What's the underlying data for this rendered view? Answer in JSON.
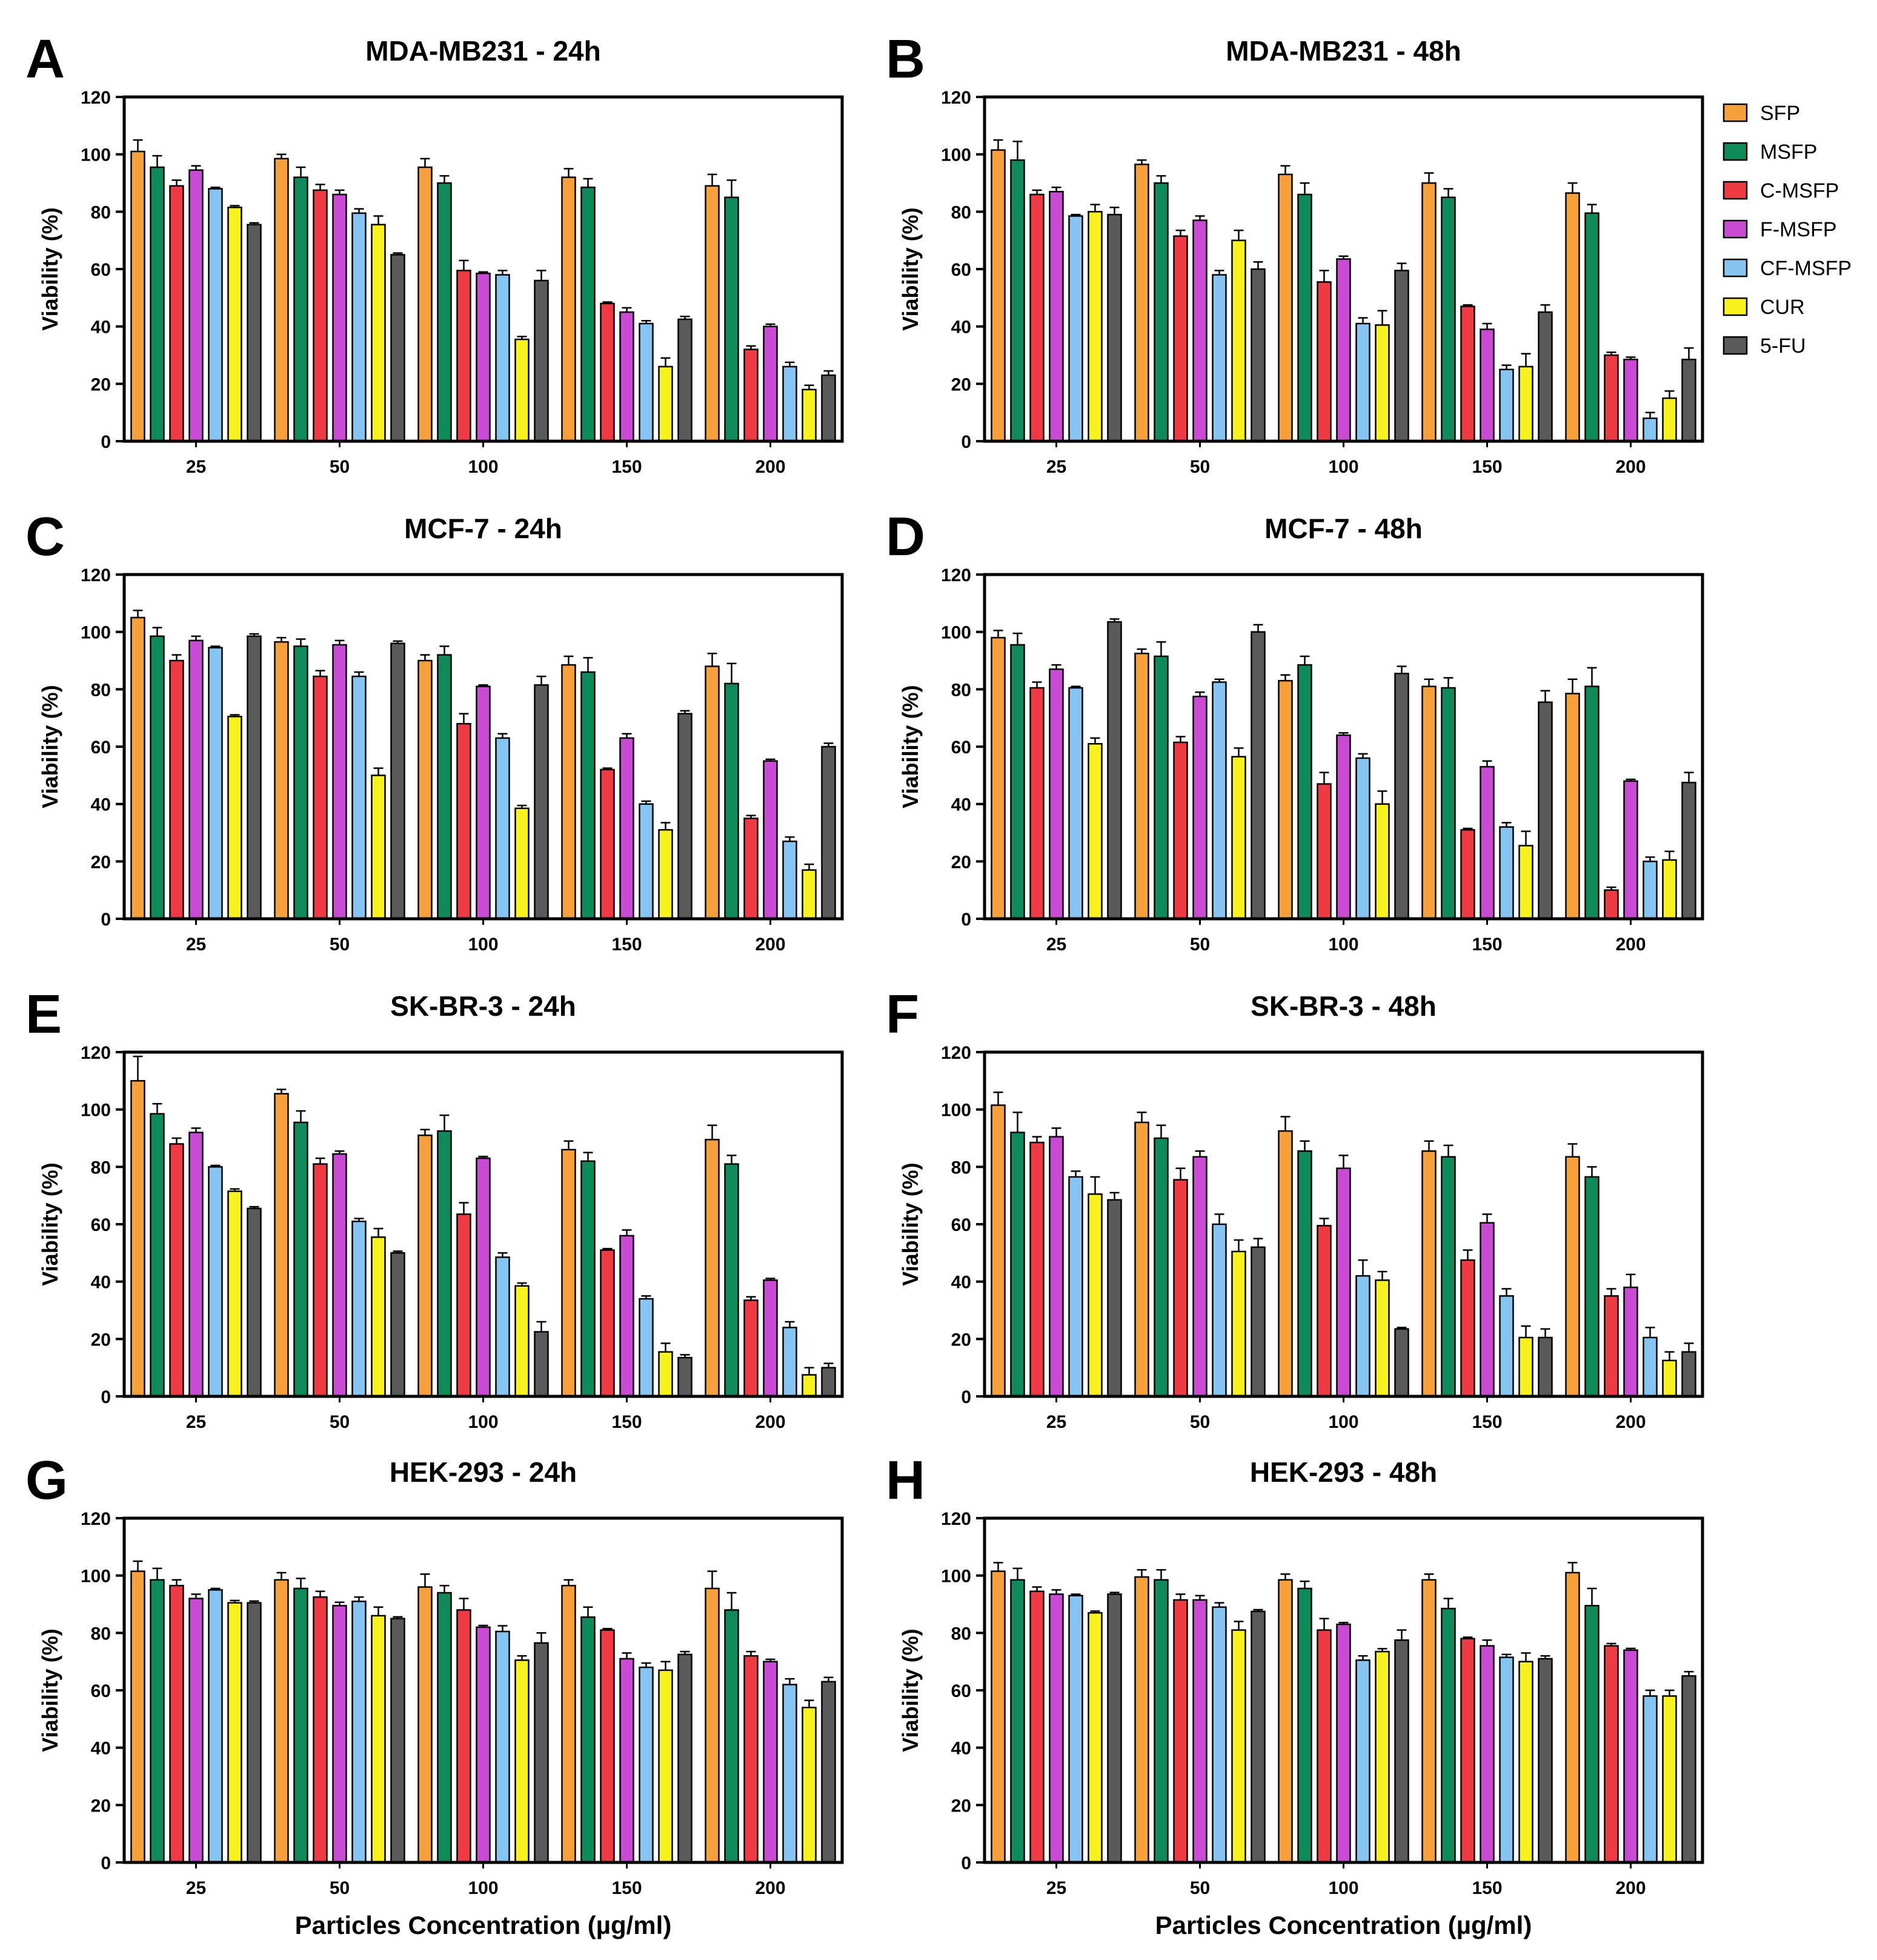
{
  "figure": {
    "x_axis_title": "Particles Concentration (µg/ml)"
  },
  "legend": [
    {
      "name": "SFP",
      "color": "#F6A03B"
    },
    {
      "name": "MSFP",
      "color": "#0E8A5B"
    },
    {
      "name": "C-MSFP",
      "color": "#F03A43"
    },
    {
      "name": "F-MSFP",
      "color": "#C94BD3"
    },
    {
      "name": "CF-MSFP",
      "color": "#86C5F2"
    },
    {
      "name": "CUR",
      "color": "#F7F11D"
    },
    {
      "name": "5-FU",
      "color": "#5A5A5A"
    }
  ],
  "chart_data": [
    {
      "type": "bar",
      "letter": "A",
      "title": "MDA-MB231 - 24h",
      "xlabel": "",
      "ylabel": "Viability (%)",
      "ylim": [
        0,
        120
      ],
      "yticks": [
        "0",
        "20",
        "40",
        "60",
        "80",
        "100",
        "120"
      ],
      "categories": [
        "25",
        "50",
        "100",
        "150",
        "200"
      ],
      "series": [
        {
          "name": "SFP",
          "values": [
            101,
            98.5,
            95.5,
            92,
            89
          ]
        },
        {
          "name": "MSFP",
          "values": [
            95.5,
            92,
            90,
            88.5,
            85
          ]
        },
        {
          "name": "C-MSFP",
          "values": [
            89,
            87.5,
            59.5,
            48,
            32
          ]
        },
        {
          "name": "F-MSFP",
          "values": [
            94.5,
            86,
            58.5,
            45,
            40
          ]
        },
        {
          "name": "CF-MSFP",
          "values": [
            88,
            79.5,
            58,
            41,
            26
          ]
        },
        {
          "name": "CUR",
          "values": [
            81.5,
            75.5,
            35.5,
            26,
            18
          ]
        },
        {
          "name": "5-FU",
          "values": [
            75.5,
            65,
            56,
            42.5,
            23
          ]
        }
      ],
      "errors": [
        [
          4,
          1.5,
          3,
          3,
          4
        ],
        [
          4,
          3.5,
          2.5,
          3,
          6
        ],
        [
          2,
          2,
          3.5,
          0.5,
          1.2
        ],
        [
          1.5,
          1.5,
          0.5,
          1.5,
          0.8
        ],
        [
          0.5,
          1.5,
          1.5,
          1,
          1.5
        ],
        [
          0.6,
          3,
          1,
          3,
          1.5
        ],
        [
          0.6,
          0.6,
          3.5,
          1,
          1.5
        ]
      ]
    },
    {
      "type": "bar",
      "letter": "B",
      "title": "MDA-MB231 - 48h",
      "xlabel": "",
      "ylabel": "Viability (%)",
      "ylim": [
        0,
        120
      ],
      "yticks": [
        "0",
        "20",
        "40",
        "60",
        "80",
        "100",
        "120"
      ],
      "categories": [
        "25",
        "50",
        "100",
        "150",
        "200"
      ],
      "series": [
        {
          "name": "SFP",
          "values": [
            101.5,
            96.5,
            93,
            90,
            86.5
          ]
        },
        {
          "name": "MSFP",
          "values": [
            98,
            90,
            86,
            85,
            79.5
          ]
        },
        {
          "name": "C-MSFP",
          "values": [
            86,
            71.5,
            55.5,
            47,
            30
          ]
        },
        {
          "name": "F-MSFP",
          "values": [
            87,
            77,
            63.5,
            39,
            28.5
          ]
        },
        {
          "name": "CF-MSFP",
          "values": [
            78.5,
            58,
            41,
            25,
            8
          ]
        },
        {
          "name": "CUR",
          "values": [
            80,
            70,
            40.5,
            26,
            15
          ]
        },
        {
          "name": "5-FU",
          "values": [
            79,
            60,
            59.5,
            45,
            28.5
          ]
        }
      ],
      "errors": [
        [
          3.5,
          1.5,
          3,
          3.5,
          3.5
        ],
        [
          6.5,
          2.5,
          4,
          3,
          3
        ],
        [
          1.5,
          2,
          4,
          0.5,
          1
        ],
        [
          1.5,
          1.5,
          1,
          2,
          0.8
        ],
        [
          0.5,
          1.5,
          2,
          1.5,
          2
        ],
        [
          2.5,
          3.5,
          5,
          4.5,
          2.5
        ],
        [
          2.5,
          2.5,
          2.5,
          2.5,
          4
        ]
      ]
    },
    {
      "type": "bar",
      "letter": "C",
      "title": "MCF-7 - 24h",
      "xlabel": "",
      "ylabel": "Viability (%)",
      "ylim": [
        0,
        120
      ],
      "yticks": [
        "0",
        "20",
        "40",
        "60",
        "80",
        "100",
        "120"
      ],
      "categories": [
        "25",
        "50",
        "100",
        "150",
        "200"
      ],
      "series": [
        {
          "name": "SFP",
          "values": [
            105,
            96.5,
            90,
            88.5,
            88
          ]
        },
        {
          "name": "MSFP",
          "values": [
            98.5,
            95,
            92,
            86,
            82
          ]
        },
        {
          "name": "C-MSFP",
          "values": [
            90,
            84.5,
            68,
            52,
            35
          ]
        },
        {
          "name": "F-MSFP",
          "values": [
            97,
            95.5,
            81,
            63,
            55
          ]
        },
        {
          "name": "CF-MSFP",
          "values": [
            94.5,
            84.5,
            63,
            40,
            27
          ]
        },
        {
          "name": "CUR",
          "values": [
            70.5,
            50,
            38.5,
            31,
            17
          ]
        },
        {
          "name": "5-FU",
          "values": [
            98.5,
            96,
            81.5,
            71.5,
            60
          ]
        }
      ],
      "errors": [
        [
          2.5,
          1.5,
          2,
          3,
          4.5
        ],
        [
          3,
          2.5,
          3,
          5,
          7
        ],
        [
          2,
          2,
          3.5,
          0.5,
          1
        ],
        [
          1.5,
          1.5,
          0.5,
          1.5,
          0.6
        ],
        [
          0.5,
          1.5,
          1.5,
          1,
          1.5
        ],
        [
          0.6,
          2.5,
          1,
          2.5,
          2
        ],
        [
          0.8,
          0.8,
          3,
          1,
          1.2
        ]
      ]
    },
    {
      "type": "bar",
      "letter": "D",
      "title": "MCF-7 - 48h",
      "xlabel": "",
      "ylabel": "Viability (%)",
      "ylim": [
        0,
        120
      ],
      "yticks": [
        "0",
        "20",
        "40",
        "60",
        "80",
        "100",
        "120"
      ],
      "categories": [
        "25",
        "50",
        "100",
        "150",
        "200"
      ],
      "series": [
        {
          "name": "SFP",
          "values": [
            98,
            92.5,
            83,
            81,
            78.5
          ]
        },
        {
          "name": "MSFP",
          "values": [
            95.5,
            91.5,
            88.5,
            80.5,
            81
          ]
        },
        {
          "name": "C-MSFP",
          "values": [
            80.5,
            61.5,
            47,
            31,
            10
          ]
        },
        {
          "name": "F-MSFP",
          "values": [
            87,
            77.5,
            64,
            53,
            48
          ]
        },
        {
          "name": "CF-MSFP",
          "values": [
            80.5,
            82.5,
            56,
            32,
            20
          ]
        },
        {
          "name": "CUR",
          "values": [
            61,
            56.5,
            40,
            25.5,
            20.5
          ]
        },
        {
          "name": "5-FU",
          "values": [
            103.5,
            100,
            85.5,
            75.5,
            47.5
          ]
        }
      ],
      "errors": [
        [
          2.5,
          1.5,
          2,
          2.5,
          5
        ],
        [
          4,
          5,
          3,
          3.5,
          6.5
        ],
        [
          2,
          2,
          4,
          0.5,
          1
        ],
        [
          1.5,
          1.5,
          0.8,
          2,
          0.6
        ],
        [
          0.5,
          1,
          1.5,
          1.5,
          1.5
        ],
        [
          2,
          3,
          4.5,
          5,
          3
        ],
        [
          1,
          2.5,
          2.5,
          4,
          3.5
        ]
      ]
    },
    {
      "type": "bar",
      "letter": "E",
      "title": "SK-BR-3 - 24h",
      "xlabel": "",
      "ylabel": "Viability (%)",
      "ylim": [
        0,
        120
      ],
      "yticks": [
        "0",
        "20",
        "40",
        "60",
        "80",
        "100",
        "120"
      ],
      "categories": [
        "25",
        "50",
        "100",
        "150",
        "200"
      ],
      "series": [
        {
          "name": "SFP",
          "values": [
            110,
            105.5,
            91,
            86,
            89.5
          ]
        },
        {
          "name": "MSFP",
          "values": [
            98.5,
            95.5,
            92.5,
            82,
            81
          ]
        },
        {
          "name": "C-MSFP",
          "values": [
            88,
            81,
            63.5,
            51,
            33.5
          ]
        },
        {
          "name": "F-MSFP",
          "values": [
            92,
            84.5,
            83,
            56,
            40.5
          ]
        },
        {
          "name": "CF-MSFP",
          "values": [
            80,
            61,
            48.5,
            34,
            24
          ]
        },
        {
          "name": "CUR",
          "values": [
            71.5,
            55.5,
            38.5,
            15.5,
            7.5
          ]
        },
        {
          "name": "5-FU",
          "values": [
            65.5,
            50,
            22.5,
            13.5,
            10
          ]
        }
      ],
      "errors": [
        [
          8.5,
          1.5,
          2,
          3,
          5
        ],
        [
          3.5,
          4,
          5.5,
          3,
          3
        ],
        [
          2,
          2,
          4,
          0.5,
          1.2
        ],
        [
          1.5,
          1,
          0.6,
          2,
          0.6
        ],
        [
          0.5,
          1,
          1.5,
          1,
          2
        ],
        [
          0.8,
          3,
          1,
          3,
          2.5
        ],
        [
          0.6,
          0.6,
          3.5,
          1,
          1.5
        ]
      ]
    },
    {
      "type": "bar",
      "letter": "F",
      "title": "SK-BR-3 - 48h",
      "xlabel": "",
      "ylabel": "Viability (%)",
      "ylim": [
        0,
        120
      ],
      "yticks": [
        "0",
        "20",
        "40",
        "60",
        "80",
        "100",
        "120"
      ],
      "categories": [
        "25",
        "50",
        "100",
        "150",
        "200"
      ],
      "series": [
        {
          "name": "SFP",
          "values": [
            101.5,
            95.5,
            92.5,
            85.5,
            83.5
          ]
        },
        {
          "name": "MSFP",
          "values": [
            92,
            90,
            85.5,
            83.5,
            76.5
          ]
        },
        {
          "name": "C-MSFP",
          "values": [
            88.5,
            75.5,
            59.5,
            47.5,
            35
          ]
        },
        {
          "name": "F-MSFP",
          "values": [
            90.5,
            83.5,
            79.5,
            60.5,
            38
          ]
        },
        {
          "name": "CF-MSFP",
          "values": [
            76.5,
            60,
            42,
            35,
            20.5
          ]
        },
        {
          "name": "CUR",
          "values": [
            70.5,
            50.5,
            40.5,
            20.5,
            12.5
          ]
        },
        {
          "name": "5-FU",
          "values": [
            68.5,
            52,
            23.5,
            20.5,
            15.5
          ]
        }
      ],
      "errors": [
        [
          4.5,
          3.5,
          5,
          3.5,
          4.5
        ],
        [
          7,
          4.5,
          3.5,
          4,
          3.5
        ],
        [
          2,
          4,
          2.5,
          3.5,
          2.5
        ],
        [
          3,
          2,
          4.5,
          3,
          4.5
        ],
        [
          2,
          3.5,
          5.5,
          2.5,
          3.5
        ],
        [
          6,
          4,
          3,
          4,
          3
        ],
        [
          2.5,
          3,
          0.5,
          3,
          3
        ]
      ]
    },
    {
      "type": "bar",
      "letter": "G",
      "title": "HEK-293 - 24h",
      "xlabel": "Particles Concentration (µg/ml)",
      "ylabel": "Viability (%)",
      "ylim": [
        0,
        120
      ],
      "yticks": [
        "0",
        "20",
        "40",
        "60",
        "80",
        "100",
        "120"
      ],
      "categories": [
        "25",
        "50",
        "100",
        "150",
        "200"
      ],
      "series": [
        {
          "name": "SFP",
          "values": [
            101.5,
            98.5,
            96,
            96.5,
            95.5
          ]
        },
        {
          "name": "MSFP",
          "values": [
            98.5,
            95.5,
            94,
            85.5,
            88
          ]
        },
        {
          "name": "C-MSFP",
          "values": [
            96.5,
            92.5,
            88,
            81,
            72
          ]
        },
        {
          "name": "F-MSFP",
          "values": [
            92,
            89.5,
            82,
            71,
            70
          ]
        },
        {
          "name": "CF-MSFP",
          "values": [
            95,
            91,
            80.5,
            68,
            62
          ]
        },
        {
          "name": "CUR",
          "values": [
            90.5,
            86,
            70.5,
            67,
            54
          ]
        },
        {
          "name": "5-FU",
          "values": [
            90.5,
            85,
            76.5,
            72.5,
            63
          ]
        }
      ],
      "errors": [
        [
          3.5,
          2.5,
          4.5,
          2,
          6
        ],
        [
          4,
          3.5,
          2.5,
          3.5,
          6
        ],
        [
          2,
          2,
          4,
          0.5,
          1.5
        ],
        [
          1.5,
          1.2,
          0.6,
          2,
          0.8
        ],
        [
          0.5,
          1.5,
          2,
          1.5,
          2
        ],
        [
          0.8,
          3,
          1.5,
          3,
          2.5
        ],
        [
          0.6,
          0.6,
          3.5,
          1,
          1.5
        ]
      ]
    },
    {
      "type": "bar",
      "letter": "H",
      "title": "HEK-293 - 48h",
      "xlabel": "Particles Concentration (µg/ml)",
      "ylabel": "Viability (%)",
      "ylim": [
        0,
        120
      ],
      "yticks": [
        "0",
        "20",
        "40",
        "60",
        "80",
        "100",
        "120"
      ],
      "categories": [
        "25",
        "50",
        "100",
        "150",
        "200"
      ],
      "series": [
        {
          "name": "SFP",
          "values": [
            101.5,
            99.5,
            98.5,
            98.5,
            101
          ]
        },
        {
          "name": "MSFP",
          "values": [
            98.5,
            98.5,
            95.5,
            88.5,
            89.5
          ]
        },
        {
          "name": "C-MSFP",
          "values": [
            94.5,
            91.5,
            81,
            78,
            75.5
          ]
        },
        {
          "name": "F-MSFP",
          "values": [
            93.5,
            91.5,
            83,
            75.5,
            74
          ]
        },
        {
          "name": "CF-MSFP",
          "values": [
            93,
            89,
            70.5,
            71.5,
            58
          ]
        },
        {
          "name": "CUR",
          "values": [
            87,
            81,
            73.5,
            70,
            58
          ]
        },
        {
          "name": "5-FU",
          "values": [
            93.5,
            87.5,
            77.5,
            71,
            65
          ]
        }
      ],
      "errors": [
        [
          3,
          2.5,
          2,
          2,
          3.5
        ],
        [
          4,
          3.5,
          2.5,
          3.5,
          6
        ],
        [
          1.5,
          2,
          4,
          0.5,
          0.8
        ],
        [
          1.5,
          1.5,
          0.6,
          2,
          0.6
        ],
        [
          0.5,
          1.5,
          1.5,
          1,
          2
        ],
        [
          0.6,
          3,
          1,
          3,
          2
        ],
        [
          0.6,
          0.6,
          3.5,
          1,
          1.5
        ]
      ]
    }
  ]
}
